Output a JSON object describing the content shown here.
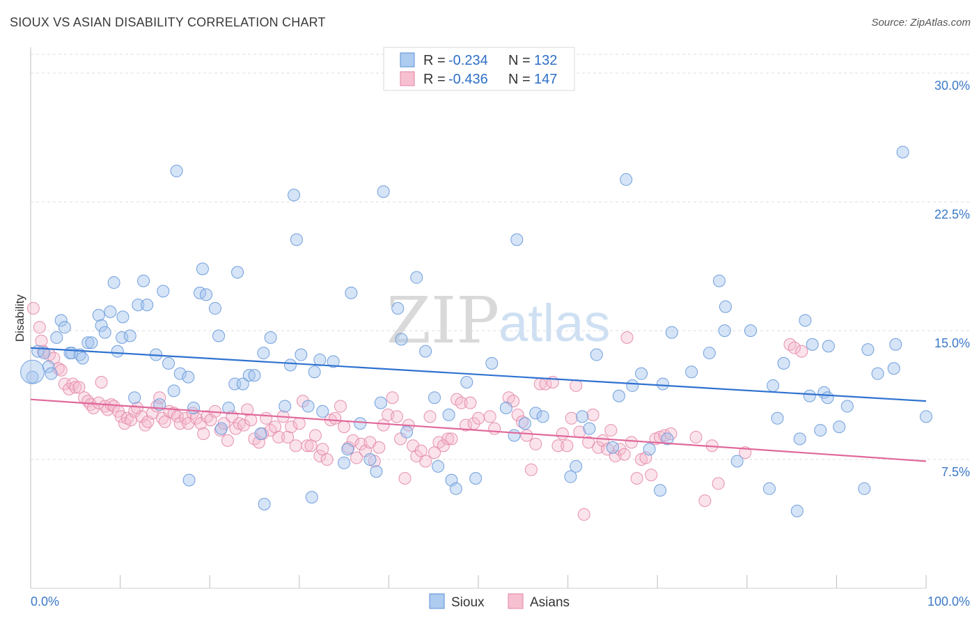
{
  "header": {
    "title": "SIOUX VS ASIAN DISABILITY CORRELATION CHART",
    "source": "Source: ZipAtlas.com"
  },
  "watermark": {
    "zip": "ZIP",
    "atlas": "atlas"
  },
  "legend": {
    "r_label": "R =",
    "n_label": "N =",
    "entries": [
      {
        "name": "Sioux",
        "r": "-0.234",
        "n": "132",
        "fill": "#aecbf0",
        "stroke": "#5a8fd6"
      },
      {
        "name": "Asians",
        "r": "-0.436",
        "n": "147",
        "fill": "#f7c0d0",
        "stroke": "#e283a4"
      }
    ]
  },
  "chart_data": {
    "type": "scatter",
    "ylabel": "Disability",
    "xlim": [
      0,
      100
    ],
    "ylim": [
      0,
      31.5
    ],
    "x_tick_labels": [
      "0.0%",
      "100.0%"
    ],
    "y_ticks": [
      7.5,
      15.0,
      22.5,
      30.0
    ],
    "y_tick_labels": [
      "7.5%",
      "15.0%",
      "22.5%",
      "30.0%"
    ],
    "grid": true,
    "legend_position": "top-center",
    "colors": {
      "sioux_line": "#2f72d0",
      "asians_line": "#e0689a",
      "grid": "#dddddd",
      "tick_label": "#3a78c9"
    },
    "series": [
      {
        "name": "Sioux",
        "trend": [
          [
            0,
            14.0
          ],
          [
            100,
            10.9
          ]
        ],
        "points": [
          [
            0.2,
            12.3
          ],
          [
            0.8,
            13.8
          ],
          [
            1.5,
            13.7
          ],
          [
            2,
            12.9
          ],
          [
            2.3,
            12.5
          ],
          [
            2.9,
            14.6
          ],
          [
            3.4,
            15.6
          ],
          [
            3.8,
            15.2
          ],
          [
            4.4,
            13.7
          ],
          [
            4.6,
            13.7
          ],
          [
            5.5,
            13.6
          ],
          [
            5.8,
            13.4
          ],
          [
            6.4,
            14.3
          ],
          [
            6.8,
            14.3
          ],
          [
            7.6,
            15.9
          ],
          [
            7.9,
            15.3
          ],
          [
            8.3,
            14.9
          ],
          [
            8.9,
            16.1
          ],
          [
            9.3,
            17.8
          ],
          [
            9.7,
            13.8
          ],
          [
            10.2,
            14.6
          ],
          [
            10.3,
            15.8
          ],
          [
            11.1,
            14.7
          ],
          [
            11.6,
            11.1
          ],
          [
            12.0,
            16.5
          ],
          [
            12.6,
            17.9
          ],
          [
            13.0,
            16.5
          ],
          [
            14.0,
            13.6
          ],
          [
            14.4,
            10.7
          ],
          [
            14.8,
            17.3
          ],
          [
            15.4,
            13.1
          ],
          [
            16.0,
            11.5
          ],
          [
            16.3,
            24.3
          ],
          [
            16.7,
            12.5
          ],
          [
            17.6,
            12.3
          ],
          [
            17.7,
            6.3
          ],
          [
            18.2,
            10.5
          ],
          [
            18.9,
            17.2
          ],
          [
            19.2,
            18.6
          ],
          [
            19.6,
            17.1
          ],
          [
            20.6,
            16.3
          ],
          [
            21.0,
            14.7
          ],
          [
            21.3,
            9.3
          ],
          [
            22.1,
            10.5
          ],
          [
            22.8,
            11.9
          ],
          [
            23.1,
            18.4
          ],
          [
            23.7,
            11.9
          ],
          [
            24.4,
            12.4
          ],
          [
            25.0,
            12.4
          ],
          [
            25.7,
            9.0
          ],
          [
            26.0,
            13.7
          ],
          [
            26.1,
            4.9
          ],
          [
            26.8,
            14.6
          ],
          [
            28.4,
            10.6
          ],
          [
            29.0,
            13.0
          ],
          [
            29.4,
            22.9
          ],
          [
            29.7,
            20.3
          ],
          [
            30.2,
            13.6
          ],
          [
            31.0,
            10.6
          ],
          [
            31.4,
            5.3
          ],
          [
            31.7,
            12.6
          ],
          [
            32.3,
            13.3
          ],
          [
            32.6,
            10.3
          ],
          [
            33.8,
            13.2
          ],
          [
            35.0,
            7.3
          ],
          [
            35.4,
            8.1
          ],
          [
            35.8,
            17.2
          ],
          [
            36.8,
            9.6
          ],
          [
            37.9,
            7.5
          ],
          [
            38.6,
            6.8
          ],
          [
            39.1,
            10.8
          ],
          [
            39.4,
            23.1
          ],
          [
            41.0,
            16.3
          ],
          [
            41.4,
            14.5
          ],
          [
            42.0,
            9.1
          ],
          [
            43.1,
            18.1
          ],
          [
            44.1,
            13.8
          ],
          [
            45.1,
            11.1
          ],
          [
            45.5,
            7.1
          ],
          [
            46.7,
            10.1
          ],
          [
            47.0,
            6.3
          ],
          [
            47.5,
            5.8
          ],
          [
            48.7,
            12.0
          ],
          [
            49.7,
            6.4
          ],
          [
            51.5,
            13.1
          ],
          [
            53.1,
            10.5
          ],
          [
            54.0,
            8.9
          ],
          [
            54.3,
            20.3
          ],
          [
            55.2,
            9.6
          ],
          [
            56.4,
            10.2
          ],
          [
            57.2,
            10.0
          ],
          [
            60.3,
            6.5
          ],
          [
            60.9,
            7.1
          ],
          [
            61.6,
            10.0
          ],
          [
            62.4,
            9.3
          ],
          [
            63.2,
            13.6
          ],
          [
            65.0,
            8.2
          ],
          [
            65.7,
            11.2
          ],
          [
            66.5,
            23.8
          ],
          [
            67.2,
            11.8
          ],
          [
            68.2,
            12.5
          ],
          [
            69.1,
            8.1
          ],
          [
            70.3,
            5.7
          ],
          [
            70.6,
            11.9
          ],
          [
            71.1,
            8.7
          ],
          [
            71.6,
            14.9
          ],
          [
            73.8,
            12.6
          ],
          [
            75.8,
            13.7
          ],
          [
            76.9,
            17.9
          ],
          [
            77.5,
            15.0
          ],
          [
            77.6,
            16.4
          ],
          [
            78.9,
            7.4
          ],
          [
            80.4,
            15.0
          ],
          [
            82.5,
            5.8
          ],
          [
            82.9,
            11.8
          ],
          [
            83.4,
            9.9
          ],
          [
            84.1,
            13.1
          ],
          [
            85.6,
            4.5
          ],
          [
            85.9,
            8.7
          ],
          [
            86.5,
            15.6
          ],
          [
            87.0,
            11.2
          ],
          [
            87.3,
            14.2
          ],
          [
            88.2,
            9.2
          ],
          [
            88.6,
            11.4
          ],
          [
            89.0,
            11.1
          ],
          [
            89.1,
            14.1
          ],
          [
            90.3,
            9.4
          ],
          [
            91.2,
            10.6
          ],
          [
            93.1,
            5.8
          ],
          [
            93.5,
            13.9
          ],
          [
            94.6,
            12.5
          ],
          [
            96.4,
            12.8
          ],
          [
            96.6,
            14.2
          ],
          [
            97.4,
            25.4
          ],
          [
            100.0,
            10.0
          ]
        ]
      },
      {
        "name": "Asians",
        "trend": [
          [
            0,
            11.0
          ],
          [
            100,
            7.4
          ]
        ],
        "points": [
          [
            0.3,
            16.3
          ],
          [
            1.0,
            15.2
          ],
          [
            1.2,
            14.4
          ],
          [
            1.4,
            13.8
          ],
          [
            2.1,
            13.6
          ],
          [
            2.6,
            13.4
          ],
          [
            3.1,
            12.8
          ],
          [
            3.4,
            12.7
          ],
          [
            3.8,
            11.9
          ],
          [
            4.3,
            11.6
          ],
          [
            4.7,
            11.9
          ],
          [
            5.0,
            11.7
          ],
          [
            5.4,
            11.7
          ],
          [
            6.0,
            11.1
          ],
          [
            6.4,
            10.9
          ],
          [
            6.7,
            10.7
          ],
          [
            7.0,
            10.5
          ],
          [
            7.6,
            10.8
          ],
          [
            7.9,
            12.0
          ],
          [
            8.3,
            10.6
          ],
          [
            8.6,
            10.4
          ],
          [
            9.0,
            10.7
          ],
          [
            9.3,
            10.6
          ],
          [
            9.8,
            10.3
          ],
          [
            10.1,
            10.0
          ],
          [
            10.5,
            9.6
          ],
          [
            10.8,
            9.9
          ],
          [
            11.2,
            9.8
          ],
          [
            11.6,
            10.3
          ],
          [
            11.9,
            10.5
          ],
          [
            12.4,
            10.0
          ],
          [
            12.8,
            9.5
          ],
          [
            13.1,
            9.7
          ],
          [
            13.6,
            10.2
          ],
          [
            14.1,
            10.6
          ],
          [
            14.4,
            11.1
          ],
          [
            14.7,
            9.9
          ],
          [
            15.0,
            9.7
          ],
          [
            15.5,
            10.3
          ],
          [
            16.0,
            10.2
          ],
          [
            16.4,
            10.0
          ],
          [
            16.7,
            9.6
          ],
          [
            17.3,
            9.9
          ],
          [
            17.6,
            9.6
          ],
          [
            18.1,
            10.2
          ],
          [
            18.5,
            9.9
          ],
          [
            19.0,
            9.6
          ],
          [
            19.3,
            9.0
          ],
          [
            19.7,
            10.0
          ],
          [
            20.1,
            9.8
          ],
          [
            20.6,
            10.3
          ],
          [
            21.2,
            9.2
          ],
          [
            21.6,
            9.6
          ],
          [
            22.0,
            8.6
          ],
          [
            22.5,
            10.0
          ],
          [
            22.9,
            9.3
          ],
          [
            23.3,
            9.6
          ],
          [
            23.8,
            9.5
          ],
          [
            24.2,
            10.4
          ],
          [
            24.6,
            9.8
          ],
          [
            25.0,
            8.7
          ],
          [
            25.5,
            8.5
          ],
          [
            25.9,
            9.0
          ],
          [
            26.3,
            9.9
          ],
          [
            26.8,
            9.2
          ],
          [
            27.3,
            9.4
          ],
          [
            27.7,
            8.8
          ],
          [
            28.2,
            10.0
          ],
          [
            28.7,
            8.8
          ],
          [
            29.1,
            9.4
          ],
          [
            29.6,
            8.3
          ],
          [
            30.0,
            9.6
          ],
          [
            30.4,
            10.9
          ],
          [
            30.9,
            8.3
          ],
          [
            31.3,
            8.3
          ],
          [
            31.8,
            8.9
          ],
          [
            32.3,
            7.7
          ],
          [
            32.6,
            8.1
          ],
          [
            33.1,
            7.5
          ],
          [
            33.5,
            9.8
          ],
          [
            34.0,
            9.9
          ],
          [
            34.6,
            10.6
          ],
          [
            35.0,
            9.4
          ],
          [
            35.5,
            8.2
          ],
          [
            36.0,
            8.6
          ],
          [
            36.4,
            7.6
          ],
          [
            36.9,
            8.4
          ],
          [
            37.4,
            8.0
          ],
          [
            37.9,
            8.5
          ],
          [
            38.4,
            7.4
          ],
          [
            38.9,
            8.2
          ],
          [
            39.4,
            9.5
          ],
          [
            39.9,
            10.1
          ],
          [
            40.4,
            11.1
          ],
          [
            40.9,
            10.0
          ],
          [
            41.3,
            8.7
          ],
          [
            41.8,
            6.4
          ],
          [
            42.2,
            9.5
          ],
          [
            42.7,
            8.3
          ],
          [
            43.1,
            7.7
          ],
          [
            43.6,
            8.0
          ],
          [
            44.1,
            7.4
          ],
          [
            44.6,
            10.0
          ],
          [
            45.1,
            7.9
          ],
          [
            45.6,
            8.5
          ],
          [
            46.1,
            8.3
          ],
          [
            46.6,
            8.7
          ],
          [
            47.0,
            8.7
          ],
          [
            47.6,
            11.0
          ],
          [
            48.1,
            10.8
          ],
          [
            48.6,
            9.5
          ],
          [
            49.1,
            10.8
          ],
          [
            49.5,
            9.6
          ],
          [
            50.0,
            9.9
          ],
          [
            51.3,
            10.0
          ],
          [
            51.8,
            9.3
          ],
          [
            53.4,
            11.1
          ],
          [
            53.9,
            10.9
          ],
          [
            54.4,
            10.1
          ],
          [
            54.9,
            9.7
          ],
          [
            55.4,
            8.9
          ],
          [
            55.9,
            6.9
          ],
          [
            56.4,
            8.4
          ],
          [
            56.9,
            11.9
          ],
          [
            57.5,
            11.9
          ],
          [
            58.3,
            12.0
          ],
          [
            58.9,
            8.3
          ],
          [
            59.4,
            9.0
          ],
          [
            59.9,
            8.3
          ],
          [
            60.4,
            9.9
          ],
          [
            60.9,
            11.8
          ],
          [
            61.3,
            9.1
          ],
          [
            61.8,
            4.3
          ],
          [
            62.3,
            8.5
          ],
          [
            62.8,
            10.1
          ],
          [
            63.4,
            8.2
          ],
          [
            63.9,
            8.6
          ],
          [
            64.4,
            8.1
          ],
          [
            64.8,
            9.2
          ],
          [
            65.3,
            7.7
          ],
          [
            65.8,
            8.1
          ],
          [
            66.3,
            7.8
          ],
          [
            66.6,
            14.6
          ],
          [
            67.1,
            8.5
          ],
          [
            67.7,
            6.4
          ],
          [
            68.2,
            7.5
          ],
          [
            68.7,
            7.6
          ],
          [
            69.3,
            6.6
          ],
          [
            69.8,
            8.7
          ],
          [
            70.3,
            8.8
          ],
          [
            70.8,
            8.9
          ],
          [
            71.5,
            9.0
          ],
          [
            74.3,
            8.8
          ],
          [
            75.3,
            5.1
          ],
          [
            76.1,
            8.3
          ],
          [
            76.8,
            6.1
          ],
          [
            79.8,
            7.9
          ],
          [
            84.8,
            14.2
          ],
          [
            85.3,
            14.0
          ],
          [
            86.1,
            13.8
          ]
        ]
      }
    ]
  }
}
